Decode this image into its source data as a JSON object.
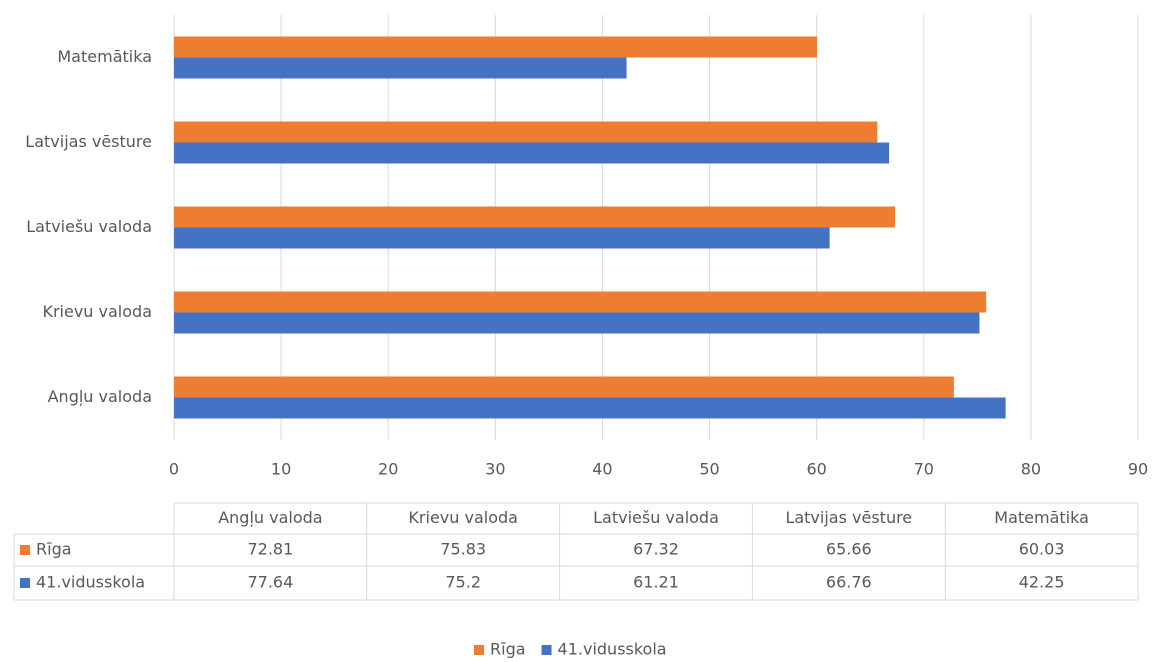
{
  "chart_data": {
    "type": "hbar",
    "categories": [
      "Angļu valoda",
      "Krievu valoda",
      "Latviešu valoda",
      "Latvijas vēsture",
      "Matemātika"
    ],
    "series": [
      {
        "name": "Rīga",
        "color": "#ed7d31",
        "values": [
          72.81,
          75.83,
          67.32,
          65.66,
          60.03
        ]
      },
      {
        "name": "41.vidusskola",
        "color": "#4472c4",
        "values": [
          77.64,
          75.2,
          61.21,
          66.76,
          42.25
        ]
      }
    ],
    "xlim": [
      0,
      90
    ],
    "xticks": [
      0,
      10,
      20,
      30,
      40,
      50,
      60,
      70,
      80,
      90
    ],
    "grid": true,
    "data_table": true
  }
}
